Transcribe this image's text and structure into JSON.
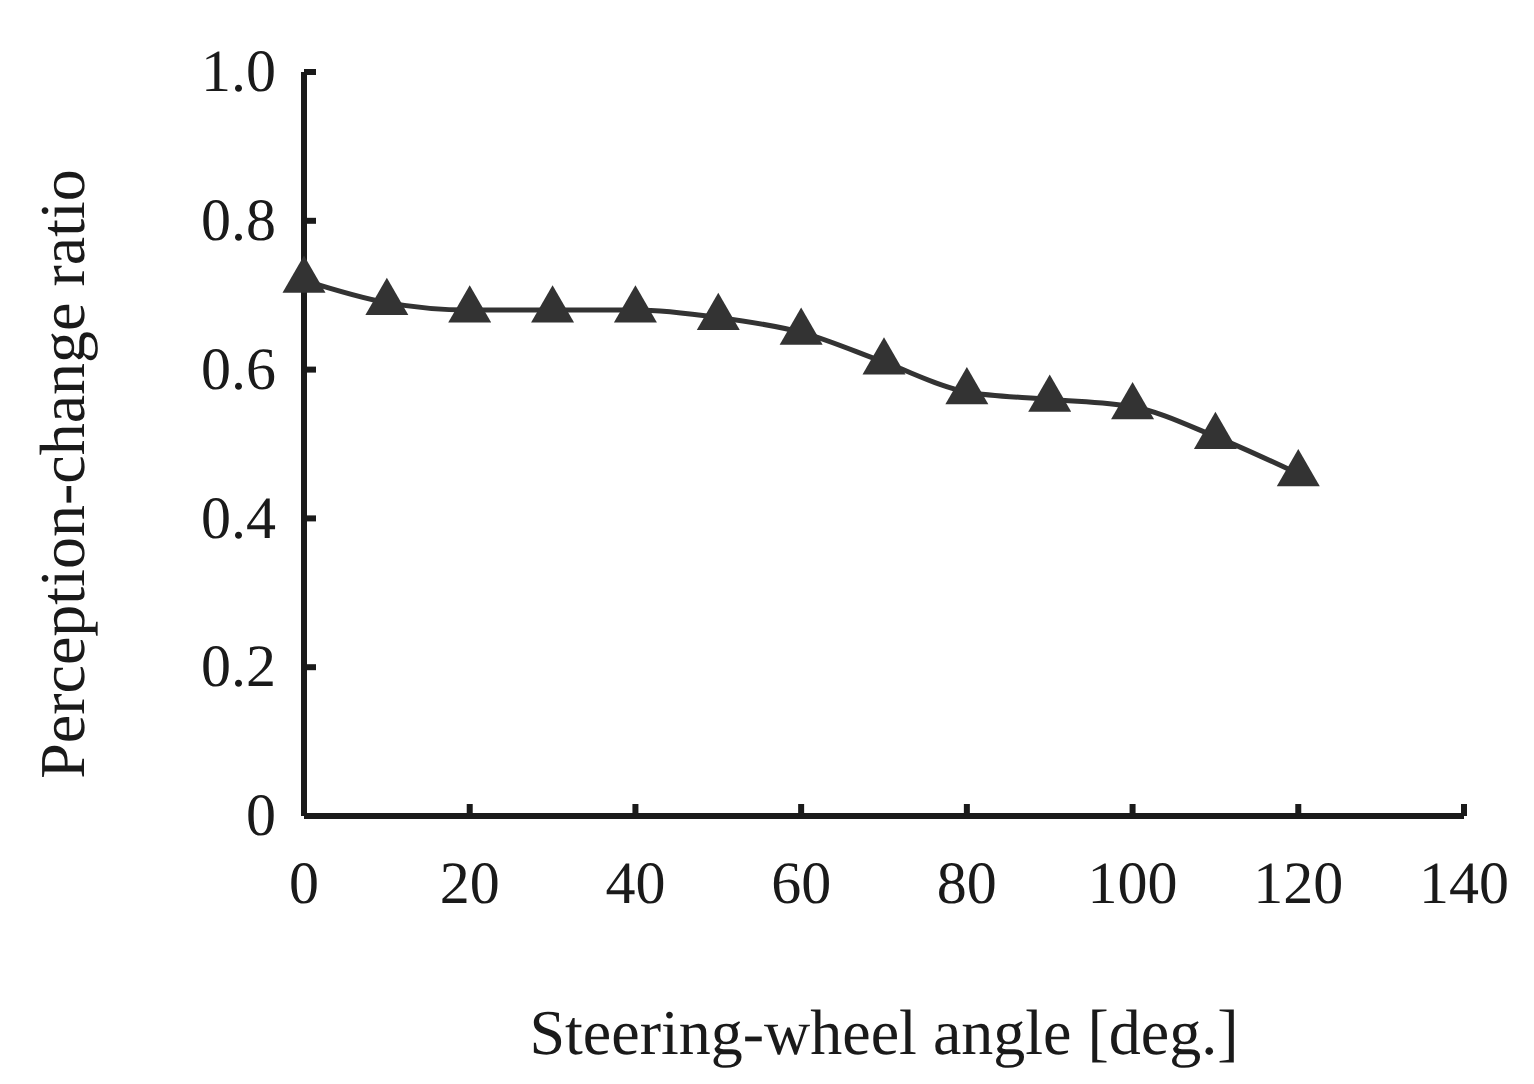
{
  "chart_data": {
    "type": "line",
    "xlabel": "Steering-wheel angle [deg.]",
    "ylabel": "Perception-change ratio",
    "x": [
      0,
      10,
      20,
      30,
      40,
      50,
      60,
      70,
      80,
      90,
      100,
      110,
      120
    ],
    "series": [
      {
        "color": "#333333",
        "values": [
          0.72,
          0.69,
          0.68,
          0.68,
          0.68,
          0.67,
          0.65,
          0.61,
          0.57,
          0.56,
          0.55,
          0.51,
          0.46
        ]
      }
    ],
    "xlim": [
      0,
      140
    ],
    "xticks": [
      0,
      20,
      40,
      60,
      80,
      100,
      120,
      140
    ],
    "ylim": [
      0,
      1.0
    ],
    "yticks": [
      0,
      0.2,
      0.4,
      0.6,
      0.8,
      {
        "value": 1.0,
        "label": "1.0"
      }
    ],
    "marker": "triangle",
    "line_style": "solid"
  }
}
